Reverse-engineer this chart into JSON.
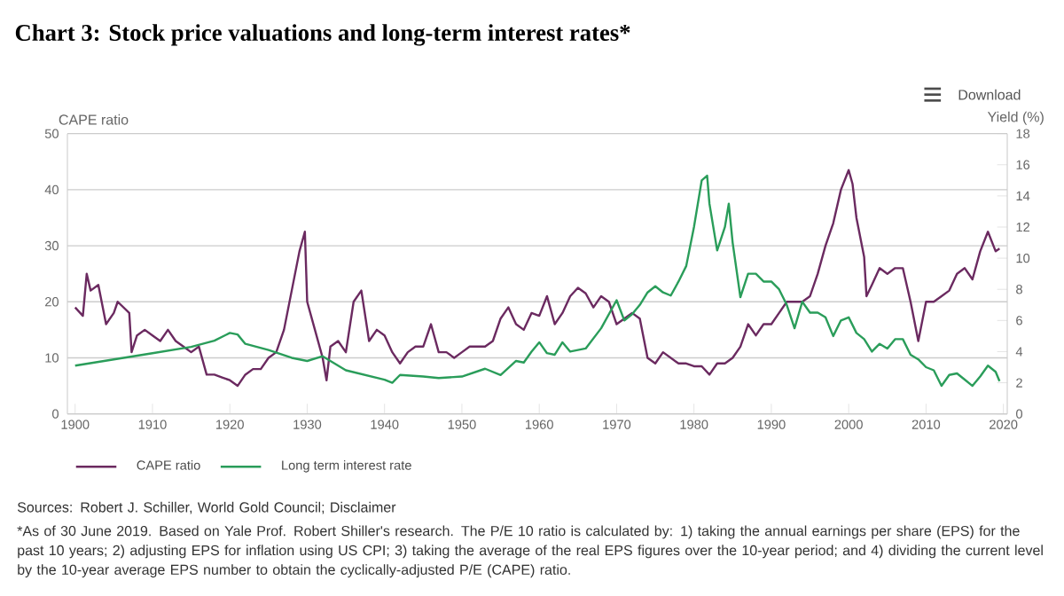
{
  "chart_data": {
    "type": "line",
    "title": "Chart 3: Stock price valuations and long-term interest rates*",
    "ylabel": "CAPE ratio",
    "y2label": "Yield (%)",
    "xlim": [
      1899,
      2020.5
    ],
    "xticks": [
      1900,
      1910,
      1920,
      1930,
      1940,
      1950,
      1960,
      1970,
      1980,
      1990,
      2000,
      2010,
      2020
    ],
    "ylim": [
      0,
      50
    ],
    "yticks": [
      0,
      10,
      20,
      30,
      40,
      50
    ],
    "y2lim": [
      0,
      18
    ],
    "y2ticks": [
      0,
      2,
      4,
      6,
      8,
      10,
      12,
      14,
      16,
      18
    ],
    "grid": "y",
    "legend": "bottom",
    "marker": "none",
    "line_style": "solid",
    "annotations": [
      "Download",
      "Sources: Robert J. Schiller, World Gold Council; Disclaimer",
      "*As of 30 June 2019. Based on Yale Prof. Robert Shiller's research. The P/E 10 ratio is calculated by: 1) taking the annual earnings per share (EPS) for the past 10 years; 2) adjusting EPS for inflation using US CPI; 3) taking the average of the real EPS figures over the 10-year period; and 4) dividing the current level by the 10-year average EPS number to obtain the cyclically-adjusted P/E (CAPE) ratio."
    ],
    "series": [
      {
        "name": "CAPE ratio",
        "color": "#6b2a60",
        "x": [
          1900,
          1901,
          1901.5,
          1902,
          1903,
          1904,
          1905,
          1905.5,
          1907,
          1907.3,
          1908,
          1909,
          1910,
          1911,
          1912,
          1913,
          1914,
          1915,
          1916,
          1917,
          1918,
          1919,
          1920,
          1921,
          1922,
          1923,
          1924,
          1925,
          1926,
          1927,
          1928,
          1929,
          1929.7,
          1930,
          1931,
          1932,
          1932.5,
          1933,
          1934,
          1935,
          1936,
          1937,
          1938,
          1939,
          1940,
          1941,
          1942,
          1943,
          1944,
          1945,
          1946,
          1947,
          1948,
          1949,
          1950,
          1951,
          1952,
          1953,
          1954,
          1955,
          1956,
          1957,
          1958,
          1959,
          1960,
          1961,
          1962,
          1963,
          1964,
          1965,
          1966,
          1967,
          1968,
          1969,
          1970,
          1971,
          1972,
          1973,
          1974,
          1975,
          1976,
          1977,
          1978,
          1979,
          1980,
          1981,
          1982,
          1983,
          1984,
          1985,
          1986,
          1987,
          1988,
          1989,
          1990,
          1991,
          1992,
          1993,
          1994,
          1995,
          1996,
          1997,
          1998,
          1999,
          2000,
          2000.5,
          2001,
          2002,
          2002.3,
          2003,
          2004,
          2005,
          2006,
          2007,
          2008,
          2009,
          2010,
          2011,
          2012,
          2013,
          2014,
          2015,
          2016,
          2017,
          2018,
          2019,
          2019.5
        ],
        "values": [
          19,
          17.5,
          25,
          22,
          23,
          16,
          18,
          20,
          18,
          11,
          14,
          15,
          14,
          13,
          15,
          13,
          12,
          11,
          12,
          7,
          7,
          6.5,
          6,
          5,
          7,
          8,
          8,
          10,
          11,
          15,
          22,
          29,
          32.5,
          20,
          15,
          10,
          6,
          12,
          13,
          11,
          20,
          22,
          13,
          15,
          14,
          11,
          9,
          11,
          12,
          12,
          16,
          11,
          11,
          10,
          11,
          12,
          12,
          12,
          13,
          17,
          19,
          16,
          15,
          18,
          17.5,
          21,
          16,
          18,
          21,
          22.5,
          21.5,
          19,
          21,
          20,
          16,
          17,
          18,
          17,
          10,
          9,
          11,
          10,
          9,
          9,
          8.5,
          8.5,
          7,
          9,
          9,
          10,
          12,
          16,
          14,
          16,
          16,
          18,
          20,
          20,
          20,
          21,
          25,
          30,
          34,
          40,
          43.5,
          41,
          35,
          28,
          21,
          23,
          26,
          25,
          26,
          26,
          20,
          13,
          20,
          20,
          21,
          22,
          25,
          26,
          24,
          29,
          32.5,
          29,
          29.5
        ]
      },
      {
        "name": "Long term interest rate",
        "color": "#2a9d5a",
        "axis": "y2",
        "x": [
          1900,
          1905,
          1910,
          1915,
          1918,
          1920,
          1921,
          1922,
          1925,
          1928,
          1930,
          1932,
          1935,
          1940,
          1941,
          1942,
          1945,
          1947,
          1950,
          1953,
          1955,
          1957,
          1958,
          1959,
          1960,
          1961,
          1962,
          1963,
          1964,
          1966,
          1968,
          1970,
          1971,
          1972,
          1973,
          1974,
          1975,
          1976,
          1977,
          1978,
          1979,
          1980,
          1981,
          1981.7,
          1982,
          1983,
          1984,
          1984.5,
          1985,
          1986,
          1987,
          1988,
          1989,
          1990,
          1991,
          1992,
          1993,
          1994,
          1995,
          1996,
          1997,
          1998,
          1999,
          2000,
          2001,
          2002,
          2003,
          2004,
          2005,
          2006,
          2007,
          2008,
          2009,
          2010,
          2011,
          2012,
          2013,
          2014,
          2015,
          2016,
          2017,
          2018,
          2019,
          2019.5
        ],
        "values": [
          3.1,
          3.5,
          3.9,
          4.3,
          4.7,
          5.2,
          5.1,
          4.5,
          4.1,
          3.6,
          3.4,
          3.7,
          2.8,
          2.2,
          2.0,
          2.5,
          2.4,
          2.3,
          2.4,
          2.9,
          2.5,
          3.4,
          3.3,
          4.0,
          4.6,
          3.9,
          3.8,
          4.6,
          4.0,
          4.2,
          5.5,
          7.3,
          6,
          6.4,
          7,
          7.8,
          8.2,
          7.8,
          7.6,
          8.5,
          9.5,
          12,
          15,
          15.3,
          13.5,
          10.5,
          12,
          13.5,
          11,
          7.5,
          9,
          9,
          8.5,
          8.5,
          8,
          7,
          5.5,
          7.2,
          6.5,
          6.5,
          6.2,
          5,
          6,
          6.2,
          5.2,
          4.8,
          4,
          4.5,
          4.2,
          4.8,
          4.8,
          3.8,
          3.5,
          3,
          2.8,
          1.8,
          2.5,
          2.6,
          2.2,
          1.8,
          2.4,
          3.1,
          2.7,
          2.1
        ]
      }
    ]
  }
}
